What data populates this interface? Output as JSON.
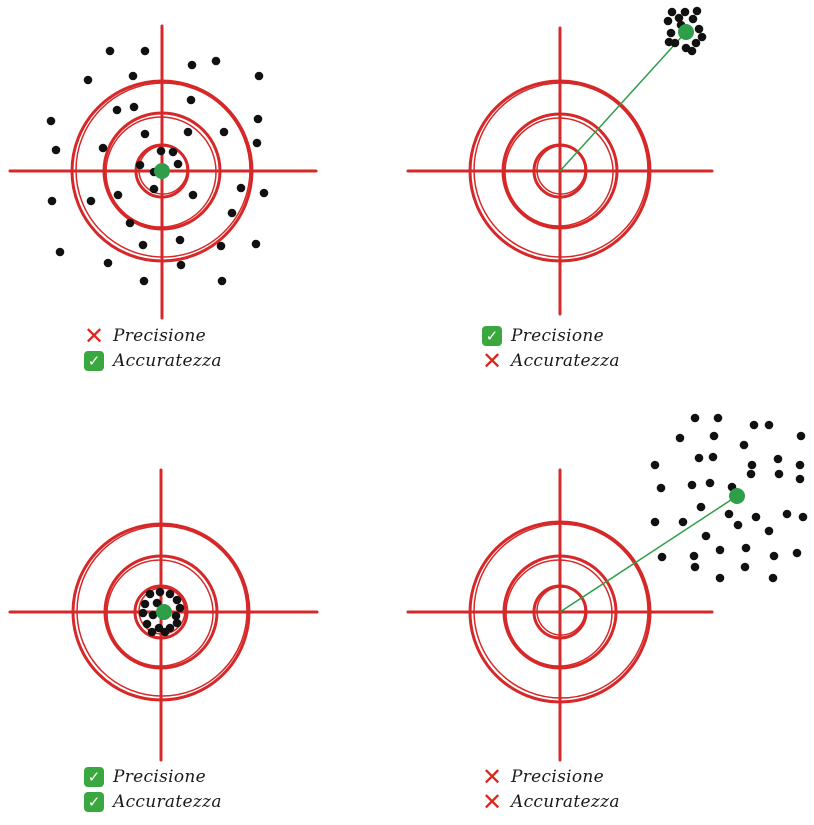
{
  "colors": {
    "target": "#d62828",
    "dot": "#111111",
    "center": "#2e9e48",
    "ok": "#3aa83f",
    "no": "#e0251b"
  },
  "icons": {
    "check": "✓",
    "cross": "✕"
  },
  "panels": [
    {
      "id": "accurate-not-precise",
      "center": [
        162,
        171
      ],
      "labels": [
        {
          "text": "Precisione",
          "status": "no"
        },
        {
          "text": "Accuratezza",
          "status": "ok"
        }
      ],
      "points": [
        [
          110,
          51
        ],
        [
          145,
          51
        ],
        [
          216,
          61
        ],
        [
          88,
          80
        ],
        [
          133,
          76
        ],
        [
          192,
          65
        ],
        [
          259,
          76
        ],
        [
          117,
          110
        ],
        [
          134,
          107
        ],
        [
          191,
          100
        ],
        [
          51,
          121
        ],
        [
          258,
          119
        ],
        [
          103,
          148
        ],
        [
          145,
          134
        ],
        [
          188,
          132
        ],
        [
          224,
          132
        ],
        [
          56,
          150
        ],
        [
          257,
          143
        ],
        [
          161,
          151
        ],
        [
          173,
          152
        ],
        [
          154,
          172
        ],
        [
          140,
          165
        ],
        [
          178,
          164
        ],
        [
          52,
          201
        ],
        [
          91,
          201
        ],
        [
          118,
          195
        ],
        [
          154,
          189
        ],
        [
          193,
          195
        ],
        [
          241,
          188
        ],
        [
          264,
          193
        ],
        [
          232,
          213
        ],
        [
          130,
          223
        ],
        [
          143,
          245
        ],
        [
          180,
          240
        ],
        [
          221,
          246
        ],
        [
          256,
          244
        ],
        [
          60,
          252
        ],
        [
          108,
          263
        ],
        [
          144,
          281
        ],
        [
          181,
          265
        ],
        [
          222,
          281
        ]
      ]
    },
    {
      "id": "precise-not-accurate",
      "center": [
        686,
        32
      ],
      "labels": [
        {
          "text": "Precisione",
          "status": "ok"
        },
        {
          "text": "Accuratezza",
          "status": "no"
        }
      ],
      "points": [
        [
          672,
          12
        ],
        [
          685,
          12
        ],
        [
          697,
          11
        ],
        [
          668,
          21
        ],
        [
          679,
          18
        ],
        [
          693,
          19
        ],
        [
          699,
          29
        ],
        [
          671,
          33
        ],
        [
          675,
          43
        ],
        [
          686,
          48
        ],
        [
          696,
          43
        ],
        [
          669,
          42
        ],
        [
          702,
          37
        ],
        [
          681,
          25
        ],
        [
          692,
          51
        ]
      ]
    },
    {
      "id": "precise-and-accurate",
      "center": [
        164,
        612
      ],
      "labels": [
        {
          "text": "Precisione",
          "status": "ok"
        },
        {
          "text": "Accuratezza",
          "status": "ok"
        }
      ],
      "points": [
        [
          150,
          594
        ],
        [
          160,
          592
        ],
        [
          170,
          594
        ],
        [
          177,
          600
        ],
        [
          145,
          604
        ],
        [
          157,
          603
        ],
        [
          180,
          608
        ],
        [
          143,
          613
        ],
        [
          153,
          615
        ],
        [
          176,
          616
        ],
        [
          147,
          624
        ],
        [
          159,
          628
        ],
        [
          170,
          628
        ],
        [
          177,
          623
        ],
        [
          152,
          632
        ],
        [
          165,
          632
        ]
      ]
    },
    {
      "id": "neither",
      "center": [
        737,
        496
      ],
      "labels": [
        {
          "text": "Precisione",
          "status": "no"
        },
        {
          "text": "Accuratezza",
          "status": "no"
        }
      ],
      "points": [
        [
          695,
          418
        ],
        [
          718,
          418
        ],
        [
          680,
          438
        ],
        [
          714,
          436
        ],
        [
          754,
          425
        ],
        [
          769,
          425
        ],
        [
          801,
          436
        ],
        [
          744,
          445
        ],
        [
          655,
          465
        ],
        [
          699,
          458
        ],
        [
          713,
          457
        ],
        [
          752,
          465
        ],
        [
          778,
          459
        ],
        [
          800,
          465
        ],
        [
          661,
          488
        ],
        [
          692,
          485
        ],
        [
          710,
          483
        ],
        [
          732,
          487
        ],
        [
          751,
          474
        ],
        [
          779,
          474
        ],
        [
          800,
          479
        ],
        [
          701,
          507
        ],
        [
          729,
          514
        ],
        [
          756,
          517
        ],
        [
          787,
          514
        ],
        [
          803,
          517
        ],
        [
          655,
          522
        ],
        [
          683,
          522
        ],
        [
          738,
          525
        ],
        [
          769,
          531
        ],
        [
          706,
          536
        ],
        [
          662,
          557
        ],
        [
          694,
          556
        ],
        [
          720,
          550
        ],
        [
          746,
          548
        ],
        [
          774,
          556
        ],
        [
          797,
          553
        ],
        [
          745,
          567
        ],
        [
          695,
          567
        ],
        [
          720,
          578
        ],
        [
          773,
          578
        ]
      ]
    }
  ]
}
